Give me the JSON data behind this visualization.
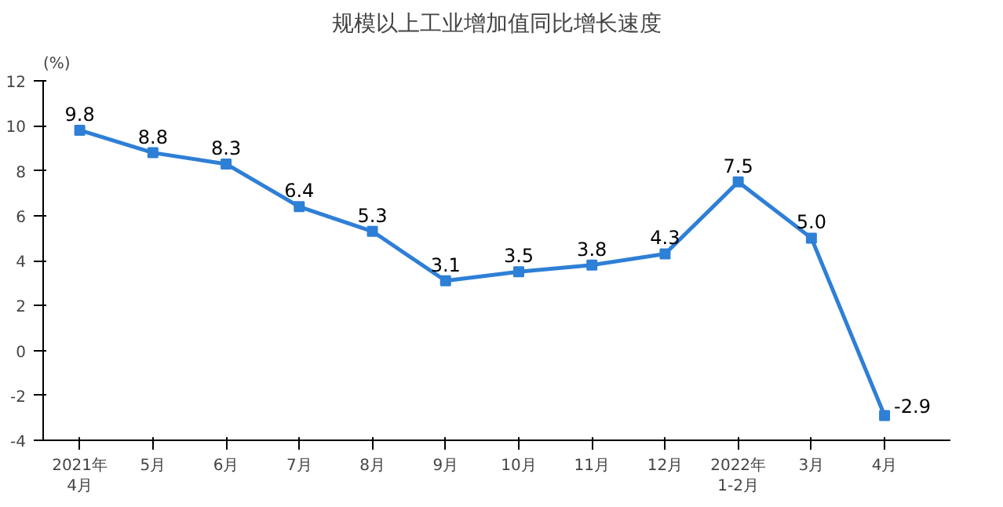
{
  "chart_data": {
    "type": "line",
    "title": "规模以上工业增加值同比增长速度",
    "ylabel": "(%)",
    "categories": [
      "2021年\n4月",
      "5月",
      "6月",
      "7月",
      "8月",
      "9月",
      "10月",
      "11月",
      "12月",
      "2022年\n1-2月",
      "3月",
      "4月"
    ],
    "series": [
      {
        "color": "#2e7fd6",
        "values": [
          9.8,
          8.8,
          8.3,
          6.4,
          5.3,
          3.1,
          3.5,
          3.8,
          4.3,
          7.5,
          5.0,
          -2.9
        ]
      }
    ],
    "ylim": [
      -4,
      12
    ],
    "yticks": [
      -4,
      -2,
      0,
      2,
      4,
      6,
      8,
      10,
      12
    ],
    "value_labels": [
      "9.8",
      "8.8",
      "8.3",
      "6.4",
      "5.3",
      "3.1",
      "3.5",
      "3.8",
      "4.3",
      "7.5",
      "5.0",
      "-2.9"
    ],
    "marker": "square",
    "line_style": "solid",
    "grid": false
  }
}
